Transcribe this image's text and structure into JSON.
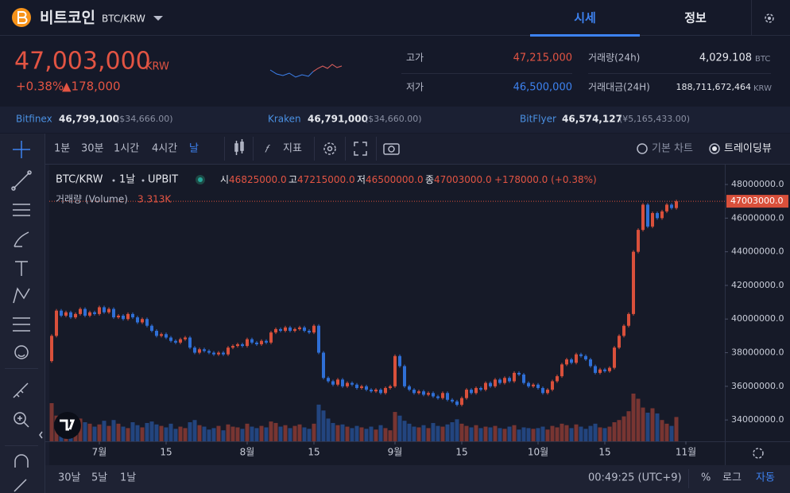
{
  "header": {
    "coin": "비트코인",
    "pair": "BTC/KRW",
    "tabs": [
      "시세",
      "정보"
    ]
  },
  "ticker": {
    "price": "47,003,000",
    "currency": "KRW",
    "change_rate": "+0.38%",
    "change": "▲178,000",
    "high": {
      "label": "고가",
      "value": "47,215,000"
    },
    "low": {
      "label": "저가",
      "value": "46,500,000"
    },
    "volume": {
      "label": "거래량(24h)",
      "value": "4,029.108",
      "unit": "BTC"
    },
    "amount": {
      "label": "거래대금(24H)",
      "value": "188,711,672,464",
      "unit": "KRW"
    }
  },
  "exchanges": [
    {
      "name": "Bitfinex",
      "price": "46,799,100",
      "usd": "($34,666.00)"
    },
    {
      "name": "Kraken",
      "price": "46,791,000",
      "usd": "($34,660.00)"
    },
    {
      "name": "BitFlyer",
      "price": "46,574,127",
      "usd": "(¥5,165,433.00)"
    }
  ],
  "toolbar": {
    "intervals": [
      "1분",
      "30분",
      "1시간",
      "4시간",
      "날"
    ],
    "indicator": "지표",
    "chart_modes": [
      "기본 차트",
      "트레이딩뷰"
    ]
  },
  "chart_data": {
    "type": "candlestick",
    "symbol": "BTC/KRW",
    "interval": "1날",
    "exchange": "UPBIT",
    "ohlc_legend": [
      {
        "label": "시",
        "value": "46825000.0"
      },
      {
        "label": "고",
        "value": "47215000.0"
      },
      {
        "label": "저",
        "value": "46500000.0"
      },
      {
        "label": "종",
        "value": "47003000.0"
      }
    ],
    "change_legend": "+178000.0 (+0.38%)",
    "volume_title": "거래량 (Volume)",
    "volume_label": "3.313K",
    "last_label": "47003000.0",
    "up_color": "#d9503b",
    "down_color": "#2f6fd6",
    "ylim": [
      32730000,
      49230000
    ],
    "yticks": [
      {
        "value": 34000000,
        "label": "34000000.0"
      },
      {
        "value": 36000000,
        "label": "36000000.0"
      },
      {
        "value": 38000000,
        "label": "38000000.0"
      },
      {
        "value": 40000000,
        "label": "40000000.0"
      },
      {
        "value": 42000000,
        "label": "42000000.0"
      },
      {
        "value": 44000000,
        "label": "44000000.0"
      },
      {
        "value": 46000000,
        "label": "46000000.0"
      },
      {
        "value": 48000000,
        "label": "48000000.0"
      }
    ],
    "xticks": [
      {
        "value": 11,
        "label": "7월"
      },
      {
        "value": 25,
        "label": "15"
      },
      {
        "value": 42,
        "label": "8월"
      },
      {
        "value": 56,
        "label": "15"
      },
      {
        "value": 73,
        "label": "9월"
      },
      {
        "value": 87,
        "label": "15"
      },
      {
        "value": 103,
        "label": "10월"
      },
      {
        "value": 117,
        "label": "15"
      },
      {
        "value": 134,
        "label": "11월"
      }
    ],
    "close": [
      37500000,
      39000000,
      40500000,
      40200000,
      40400000,
      40100000,
      40300000,
      40600000,
      40200000,
      40400000,
      40300000,
      40700000,
      40400000,
      40600000,
      40100000,
      40200000,
      40000000,
      40300000,
      40100000,
      39800000,
      40000000,
      39600000,
      39300000,
      39000000,
      39100000,
      38900000,
      38700000,
      38600000,
      38800000,
      38900000,
      38300000,
      38000000,
      38200000,
      38100000,
      38000000,
      37900000,
      38000000,
      37900000,
      38300000,
      38400000,
      38500000,
      38400000,
      38800000,
      38600000,
      38500000,
      38700000,
      38600000,
      39200000,
      39400000,
      39300000,
      39500000,
      39300000,
      39400000,
      39500000,
      39300000,
      39200000,
      39600000,
      38000000,
      36500000,
      36300000,
      36100000,
      36400000,
      36000000,
      36200000,
      36100000,
      35900000,
      36000000,
      35800000,
      35700000,
      35800000,
      35600000,
      35900000,
      36000000,
      37800000,
      37200000,
      36000000,
      35800000,
      35600000,
      35700000,
      35500000,
      35600000,
      35400000,
      35300000,
      35600000,
      35200000,
      35100000,
      34900000,
      35300000,
      35800000,
      35600000,
      35900000,
      35800000,
      36200000,
      36000000,
      36400000,
      36200000,
      36500000,
      36300000,
      36800000,
      36700000,
      36200000,
      36000000,
      36100000,
      35900000,
      35600000,
      35800000,
      36300000,
      36600000,
      37300000,
      37600000,
      37400000,
      37900000,
      37800000,
      37600000,
      37200000,
      36800000,
      37000000,
      36900000,
      37100000,
      38300000,
      39000000,
      39600000,
      40300000,
      44000000,
      45300000,
      46800000,
      45500000,
      46300000,
      46000000,
      46400000,
      46800000,
      46600000,
      47003000
    ],
    "volume": [
      3.0,
      5.2,
      3.5,
      2.8,
      3.0,
      2.5,
      2.2,
      3.1,
      2.6,
      2.4,
      2.0,
      2.3,
      2.8,
      2.1,
      2.9,
      2.4,
      2.0,
      1.8,
      2.6,
      2.2,
      1.9,
      2.5,
      2.7,
      2.3,
      2.1,
      1.9,
      2.4,
      1.7,
      2.0,
      1.8,
      2.6,
      2.9,
      2.2,
      2.0,
      1.6,
      1.8,
      2.1,
      1.5,
      2.3,
      2.0,
      1.9,
      1.7,
      2.4,
      2.0,
      1.8,
      2.1,
      1.9,
      2.7,
      2.5,
      2.0,
      2.2,
      1.8,
      2.1,
      2.3,
      1.9,
      1.7,
      2.4,
      5.0,
      4.2,
      3.1,
      2.5,
      2.2,
      2.3,
      2.0,
      1.8,
      2.1,
      1.9,
      1.7,
      2.0,
      1.6,
      2.2,
      1.8,
      1.5,
      4.0,
      3.5,
      2.8,
      2.4,
      2.0,
      1.9,
      2.2,
      1.8,
      2.5,
      2.1,
      2.0,
      2.3,
      2.6,
      3.0,
      2.4,
      2.1,
      1.9,
      2.2,
      1.8,
      2.0,
      1.9,
      2.1,
      1.8,
      1.7,
      2.0,
      2.2,
      1.6,
      1.9,
      1.8,
      1.7,
      1.8,
      2.0,
      1.6,
      2.1,
      1.9,
      2.4,
      2.2,
      1.8,
      2.3,
      2.0,
      1.7,
      2.1,
      2.4,
      1.9,
      1.8,
      2.0,
      2.6,
      2.9,
      3.4,
      4.1,
      6.5,
      5.8,
      4.6,
      3.9,
      4.5,
      3.8,
      2.9,
      2.4,
      2.1,
      3.313
    ]
  },
  "footer": {
    "ranges": [
      "30날",
      "5날",
      "1날"
    ],
    "time": "00:49:25 (UTC+9)",
    "options": [
      "%",
      "로그",
      "자동"
    ]
  }
}
